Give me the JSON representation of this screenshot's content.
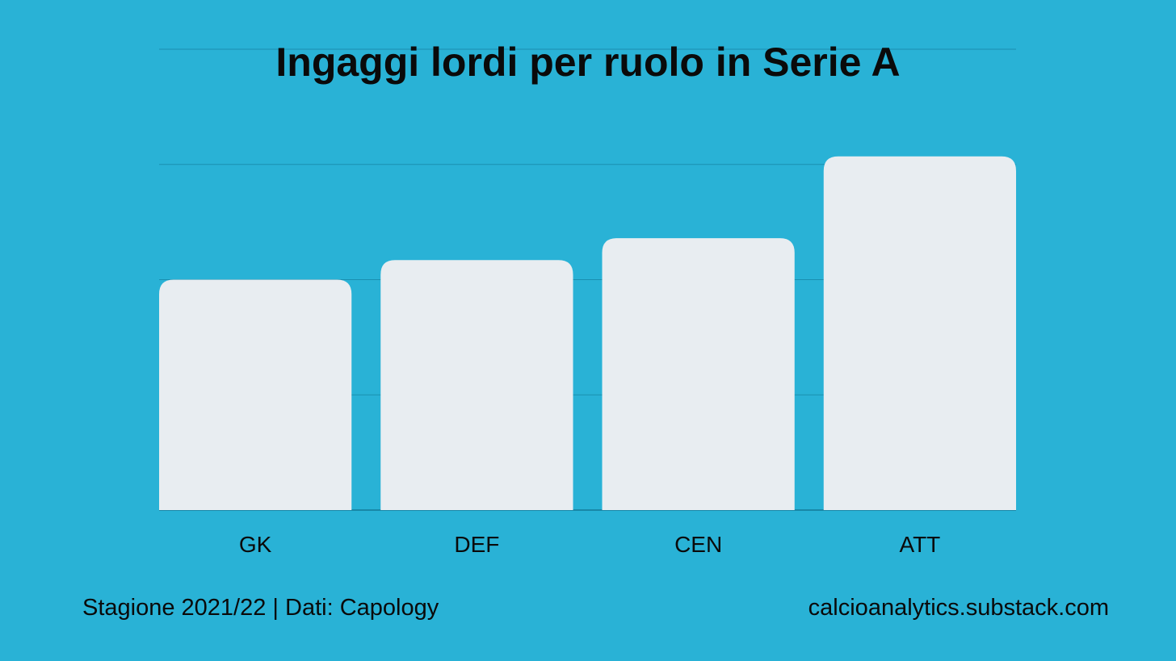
{
  "colors": {
    "background": "#29b2d6",
    "bar": "#e8edf1",
    "gridline": "#1a8fb0",
    "text": "#0a0a0a"
  },
  "chart_data": {
    "type": "bar",
    "title": "Ingaggi lordi per ruolo in Serie A",
    "categories": [
      "GK",
      "DEF",
      "CEN",
      "ATT"
    ],
    "values": [
      2.0,
      2.17,
      2.36,
      3.07
    ],
    "ylim": [
      0,
      4
    ],
    "grid": true,
    "legend": "none"
  },
  "footer": {
    "left": "Stagione 2021/22 | Dati: Capology",
    "right": "calcioanalytics.substack.com"
  }
}
